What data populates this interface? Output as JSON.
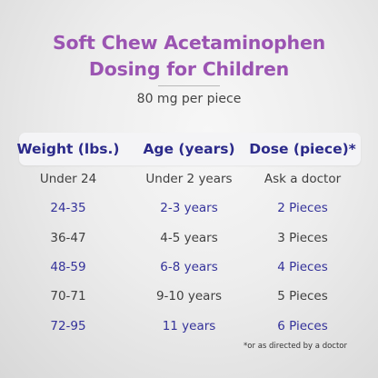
{
  "title_line1": "Soft Chew Acetaminophen",
  "title_line2": "Dosing for Children",
  "subtitle": "80 mg per piece",
  "table": {
    "headers": [
      "Weight (lbs.)",
      "Age (years)",
      "Dose (piece)*"
    ],
    "rows": [
      [
        "Under 24",
        "Under 2 years",
        "Ask a doctor"
      ],
      [
        "24-35",
        "2-3 years",
        "2 Pieces"
      ],
      [
        "36-47",
        "4-5 years",
        "3 Pieces"
      ],
      [
        "48-59",
        "6-8 years",
        "4 Pieces"
      ],
      [
        "70-71",
        "9-10 years",
        "5 Pieces"
      ],
      [
        "72-95",
        "11 years",
        "6 Pieces"
      ]
    ]
  },
  "footnote": "*or as directed by a doctor",
  "colors": {
    "title": "#9b54b2",
    "header_text": "#2b2a8a",
    "highlight_row_text": "#34329a",
    "plain_row_text": "#3f3f3f"
  }
}
